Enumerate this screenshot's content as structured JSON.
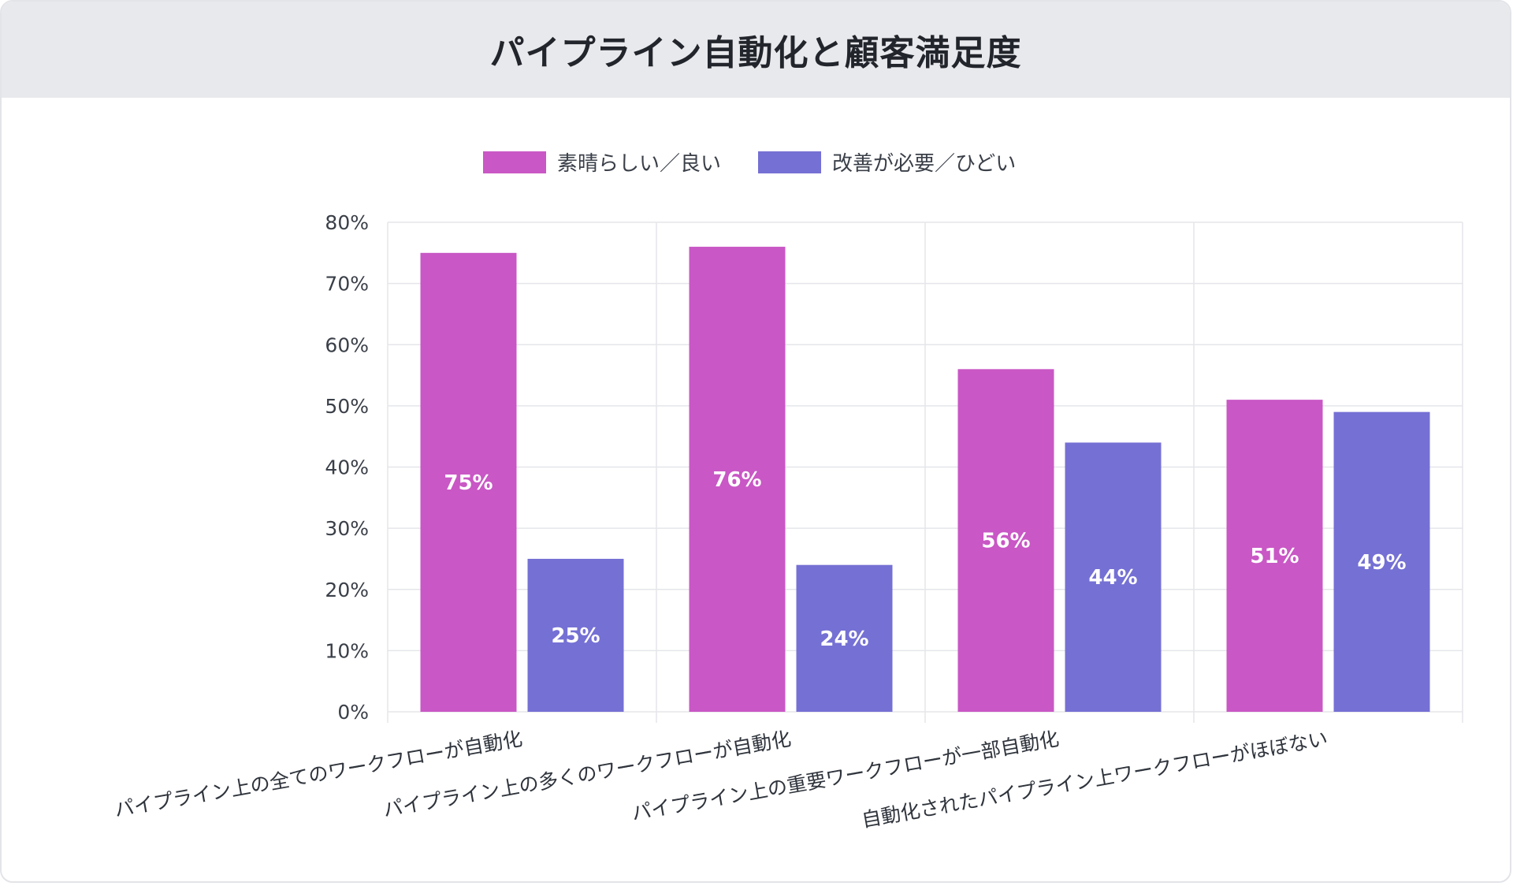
{
  "header": {
    "title": "パイプライン自動化と顧客満足度"
  },
  "colors": {
    "good": "#c957c5",
    "bad": "#7570d4",
    "grid": "#e5e6ea",
    "header_bg": "#e8e9ed"
  },
  "chart_data": {
    "type": "bar",
    "title": "パイプライン自動化と顧客満足度",
    "categories": [
      "パイプライン上の全てのワークフローが自動化",
      "パイプライン上の多くのワークフローが自動化",
      "パイプライン上の重要ワークフローが一部自動化",
      "自動化されたパイプライン上ワークフローがほぼない"
    ],
    "series": [
      {
        "name": "素晴らしい／良い",
        "values": [
          75,
          76,
          56,
          51
        ],
        "labels": [
          "75%",
          "76%",
          "56%",
          "51%"
        ]
      },
      {
        "name": "改善が必要／ひどい",
        "values": [
          25,
          24,
          44,
          49
        ],
        "labels": [
          "25%",
          "24%",
          "44%",
          "49%"
        ]
      }
    ],
    "yticks": [
      "0%",
      "10%",
      "20%",
      "30%",
      "40%",
      "50%",
      "60%",
      "70%",
      "80%"
    ],
    "ylim": [
      0,
      80
    ],
    "grid": true,
    "legend": "top-center"
  }
}
